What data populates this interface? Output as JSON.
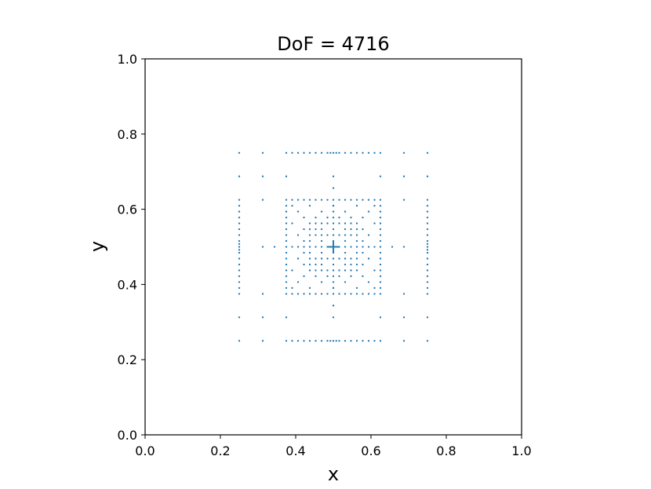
{
  "chart_data": {
    "type": "scatter",
    "title": "DoF = 4716",
    "xlabel": "x",
    "ylabel": "y",
    "xlim": [
      0.0,
      1.0
    ],
    "ylim": [
      0.0,
      1.0
    ],
    "xticks": [
      "0.0",
      "0.2",
      "0.4",
      "0.6",
      "0.8",
      "1.0"
    ],
    "yticks": [
      "0.0",
      "0.2",
      "0.4",
      "0.6",
      "0.8",
      "1.0"
    ],
    "grid": false,
    "legend": "none",
    "marker_color": "#1f77b4",
    "series": [
      {
        "points": [
          [
            0.25,
            0.25
          ],
          [
            0.3125,
            0.25
          ],
          [
            0.375,
            0.25
          ],
          [
            0.3906,
            0.25
          ],
          [
            0.4063,
            0.25
          ],
          [
            0.4219,
            0.25
          ],
          [
            0.4375,
            0.25
          ],
          [
            0.4531,
            0.25
          ],
          [
            0.4688,
            0.25
          ],
          [
            0.4844,
            0.25
          ],
          [
            0.4922,
            0.25
          ],
          [
            0.5,
            0.25
          ],
          [
            0.5078,
            0.25
          ],
          [
            0.5156,
            0.25
          ],
          [
            0.5313,
            0.25
          ],
          [
            0.5469,
            0.25
          ],
          [
            0.5625,
            0.25
          ],
          [
            0.5781,
            0.25
          ],
          [
            0.5938,
            0.25
          ],
          [
            0.6094,
            0.25
          ],
          [
            0.625,
            0.25
          ],
          [
            0.6875,
            0.25
          ],
          [
            0.75,
            0.25
          ],
          [
            0.25,
            0.75
          ],
          [
            0.3125,
            0.75
          ],
          [
            0.375,
            0.75
          ],
          [
            0.3906,
            0.75
          ],
          [
            0.4063,
            0.75
          ],
          [
            0.4219,
            0.75
          ],
          [
            0.4375,
            0.75
          ],
          [
            0.4531,
            0.75
          ],
          [
            0.4688,
            0.75
          ],
          [
            0.4844,
            0.75
          ],
          [
            0.4922,
            0.75
          ],
          [
            0.5,
            0.75
          ],
          [
            0.5078,
            0.75
          ],
          [
            0.5156,
            0.75
          ],
          [
            0.5313,
            0.75
          ],
          [
            0.5469,
            0.75
          ],
          [
            0.5625,
            0.75
          ],
          [
            0.5781,
            0.75
          ],
          [
            0.5938,
            0.75
          ],
          [
            0.6094,
            0.75
          ],
          [
            0.625,
            0.75
          ],
          [
            0.6875,
            0.75
          ],
          [
            0.75,
            0.75
          ],
          [
            0.25,
            0.3125
          ],
          [
            0.25,
            0.375
          ],
          [
            0.25,
            0.3906
          ],
          [
            0.25,
            0.4063
          ],
          [
            0.25,
            0.4219
          ],
          [
            0.25,
            0.4375
          ],
          [
            0.25,
            0.4531
          ],
          [
            0.25,
            0.4688
          ],
          [
            0.25,
            0.4844
          ],
          [
            0.25,
            0.4922
          ],
          [
            0.25,
            0.5
          ],
          [
            0.25,
            0.5078
          ],
          [
            0.25,
            0.5156
          ],
          [
            0.25,
            0.5313
          ],
          [
            0.25,
            0.5469
          ],
          [
            0.25,
            0.5625
          ],
          [
            0.25,
            0.5781
          ],
          [
            0.25,
            0.5938
          ],
          [
            0.25,
            0.6094
          ],
          [
            0.25,
            0.625
          ],
          [
            0.25,
            0.6875
          ],
          [
            0.75,
            0.3125
          ],
          [
            0.75,
            0.375
          ],
          [
            0.75,
            0.3906
          ],
          [
            0.75,
            0.4063
          ],
          [
            0.75,
            0.4219
          ],
          [
            0.75,
            0.4375
          ],
          [
            0.75,
            0.4531
          ],
          [
            0.75,
            0.4688
          ],
          [
            0.75,
            0.4844
          ],
          [
            0.75,
            0.4922
          ],
          [
            0.75,
            0.5
          ],
          [
            0.75,
            0.5078
          ],
          [
            0.75,
            0.5156
          ],
          [
            0.75,
            0.5313
          ],
          [
            0.75,
            0.5469
          ],
          [
            0.75,
            0.5625
          ],
          [
            0.75,
            0.5781
          ],
          [
            0.75,
            0.5938
          ],
          [
            0.75,
            0.6094
          ],
          [
            0.75,
            0.625
          ],
          [
            0.75,
            0.6875
          ],
          [
            0.3125,
            0.3125
          ],
          [
            0.375,
            0.3125
          ],
          [
            0.5,
            0.3125
          ],
          [
            0.625,
            0.3125
          ],
          [
            0.6875,
            0.3125
          ],
          [
            0.3125,
            0.6875
          ],
          [
            0.375,
            0.6875
          ],
          [
            0.5,
            0.6875
          ],
          [
            0.625,
            0.6875
          ],
          [
            0.6875,
            0.6875
          ],
          [
            0.3125,
            0.375
          ],
          [
            0.6875,
            0.375
          ],
          [
            0.3125,
            0.625
          ],
          [
            0.6875,
            0.625
          ],
          [
            0.3125,
            0.5
          ],
          [
            0.3438,
            0.5
          ],
          [
            0.6563,
            0.5
          ],
          [
            0.6875,
            0.5
          ],
          [
            0.5,
            0.3438
          ],
          [
            0.5,
            0.6563
          ],
          [
            0.375,
            0.375
          ],
          [
            0.3906,
            0.375
          ],
          [
            0.4063,
            0.375
          ],
          [
            0.4219,
            0.375
          ],
          [
            0.4375,
            0.375
          ],
          [
            0.4531,
            0.375
          ],
          [
            0.4688,
            0.375
          ],
          [
            0.4844,
            0.375
          ],
          [
            0.5,
            0.375
          ],
          [
            0.5156,
            0.375
          ],
          [
            0.5313,
            0.375
          ],
          [
            0.5469,
            0.375
          ],
          [
            0.5625,
            0.375
          ],
          [
            0.5781,
            0.375
          ],
          [
            0.5938,
            0.375
          ],
          [
            0.6094,
            0.375
          ],
          [
            0.625,
            0.375
          ],
          [
            0.375,
            0.625
          ],
          [
            0.3906,
            0.625
          ],
          [
            0.4063,
            0.625
          ],
          [
            0.4219,
            0.625
          ],
          [
            0.4375,
            0.625
          ],
          [
            0.4531,
            0.625
          ],
          [
            0.4688,
            0.625
          ],
          [
            0.4844,
            0.625
          ],
          [
            0.5,
            0.625
          ],
          [
            0.5156,
            0.625
          ],
          [
            0.5313,
            0.625
          ],
          [
            0.5469,
            0.625
          ],
          [
            0.5625,
            0.625
          ],
          [
            0.5781,
            0.625
          ],
          [
            0.5938,
            0.625
          ],
          [
            0.6094,
            0.625
          ],
          [
            0.625,
            0.625
          ],
          [
            0.375,
            0.3906
          ],
          [
            0.375,
            0.4063
          ],
          [
            0.375,
            0.4219
          ],
          [
            0.375,
            0.4375
          ],
          [
            0.375,
            0.4531
          ],
          [
            0.375,
            0.4688
          ],
          [
            0.375,
            0.4844
          ],
          [
            0.375,
            0.5
          ],
          [
            0.375,
            0.5156
          ],
          [
            0.375,
            0.5313
          ],
          [
            0.375,
            0.5469
          ],
          [
            0.375,
            0.5625
          ],
          [
            0.375,
            0.5781
          ],
          [
            0.375,
            0.5938
          ],
          [
            0.375,
            0.6094
          ],
          [
            0.625,
            0.3906
          ],
          [
            0.625,
            0.4063
          ],
          [
            0.625,
            0.4219
          ],
          [
            0.625,
            0.4375
          ],
          [
            0.625,
            0.4531
          ],
          [
            0.625,
            0.4688
          ],
          [
            0.625,
            0.4844
          ],
          [
            0.625,
            0.5
          ],
          [
            0.625,
            0.5156
          ],
          [
            0.625,
            0.5313
          ],
          [
            0.625,
            0.5469
          ],
          [
            0.625,
            0.5625
          ],
          [
            0.625,
            0.5781
          ],
          [
            0.625,
            0.5938
          ],
          [
            0.625,
            0.6094
          ],
          [
            0.3906,
            0.3906
          ],
          [
            0.4375,
            0.3906
          ],
          [
            0.5,
            0.3906
          ],
          [
            0.5625,
            0.3906
          ],
          [
            0.6094,
            0.3906
          ],
          [
            0.3906,
            0.6094
          ],
          [
            0.4375,
            0.6094
          ],
          [
            0.5,
            0.6094
          ],
          [
            0.5625,
            0.6094
          ],
          [
            0.6094,
            0.6094
          ],
          [
            0.3906,
            0.4375
          ],
          [
            0.3906,
            0.5625
          ],
          [
            0.6094,
            0.4375
          ],
          [
            0.6094,
            0.5625
          ],
          [
            0.4063,
            0.4063
          ],
          [
            0.4688,
            0.4063
          ],
          [
            0.5313,
            0.4063
          ],
          [
            0.5938,
            0.4063
          ],
          [
            0.4063,
            0.5938
          ],
          [
            0.4688,
            0.5938
          ],
          [
            0.5313,
            0.5938
          ],
          [
            0.5938,
            0.5938
          ],
          [
            0.4063,
            0.4688
          ],
          [
            0.4063,
            0.5313
          ],
          [
            0.5938,
            0.4688
          ],
          [
            0.5938,
            0.5313
          ],
          [
            0.4219,
            0.4219
          ],
          [
            0.4531,
            0.4219
          ],
          [
            0.4844,
            0.4219
          ],
          [
            0.5156,
            0.4219
          ],
          [
            0.5469,
            0.4219
          ],
          [
            0.5781,
            0.4219
          ],
          [
            0.4219,
            0.5781
          ],
          [
            0.4531,
            0.5781
          ],
          [
            0.4844,
            0.5781
          ],
          [
            0.5156,
            0.5781
          ],
          [
            0.5469,
            0.5781
          ],
          [
            0.5781,
            0.5781
          ],
          [
            0.4219,
            0.4531
          ],
          [
            0.4219,
            0.4844
          ],
          [
            0.4219,
            0.5156
          ],
          [
            0.4219,
            0.5469
          ],
          [
            0.5781,
            0.4531
          ],
          [
            0.5781,
            0.4844
          ],
          [
            0.5781,
            0.5156
          ],
          [
            0.5781,
            0.5469
          ],
          [
            0.4375,
            0.4375
          ],
          [
            0.4531,
            0.4375
          ],
          [
            0.4688,
            0.4375
          ],
          [
            0.4844,
            0.4375
          ],
          [
            0.5,
            0.4375
          ],
          [
            0.5156,
            0.4375
          ],
          [
            0.5313,
            0.4375
          ],
          [
            0.5469,
            0.4375
          ],
          [
            0.5625,
            0.4375
          ],
          [
            0.4375,
            0.5625
          ],
          [
            0.4531,
            0.5625
          ],
          [
            0.4688,
            0.5625
          ],
          [
            0.4844,
            0.5625
          ],
          [
            0.5,
            0.5625
          ],
          [
            0.5156,
            0.5625
          ],
          [
            0.5313,
            0.5625
          ],
          [
            0.5469,
            0.5625
          ],
          [
            0.5625,
            0.5625
          ],
          [
            0.4375,
            0.4531
          ],
          [
            0.4375,
            0.4688
          ],
          [
            0.4375,
            0.4844
          ],
          [
            0.4375,
            0.5
          ],
          [
            0.4375,
            0.5156
          ],
          [
            0.4375,
            0.5313
          ],
          [
            0.4375,
            0.5469
          ],
          [
            0.5625,
            0.4531
          ],
          [
            0.5625,
            0.4688
          ],
          [
            0.5625,
            0.4844
          ],
          [
            0.5625,
            0.5
          ],
          [
            0.5625,
            0.5156
          ],
          [
            0.5625,
            0.5313
          ],
          [
            0.5625,
            0.5469
          ],
          [
            0.4531,
            0.4531
          ],
          [
            0.4688,
            0.4531
          ],
          [
            0.5313,
            0.4531
          ],
          [
            0.5469,
            0.4531
          ],
          [
            0.4531,
            0.5469
          ],
          [
            0.4688,
            0.5469
          ],
          [
            0.5313,
            0.5469
          ],
          [
            0.5469,
            0.5469
          ],
          [
            0.4531,
            0.4688
          ],
          [
            0.4531,
            0.5313
          ],
          [
            0.5469,
            0.4688
          ],
          [
            0.5469,
            0.5313
          ],
          [
            0.4688,
            0.4688
          ],
          [
            0.4844,
            0.4688
          ],
          [
            0.5156,
            0.4688
          ],
          [
            0.5313,
            0.4688
          ],
          [
            0.4688,
            0.5313
          ],
          [
            0.4844,
            0.5313
          ],
          [
            0.5156,
            0.5313
          ],
          [
            0.5313,
            0.5313
          ],
          [
            0.4688,
            0.4844
          ],
          [
            0.4688,
            0.5156
          ],
          [
            0.5313,
            0.4844
          ],
          [
            0.5313,
            0.5156
          ],
          [
            0.3906,
            0.5
          ],
          [
            0.4063,
            0.5
          ],
          [
            0.4219,
            0.5
          ],
          [
            0.4531,
            0.5
          ],
          [
            0.4688,
            0.5
          ],
          [
            0.4844,
            0.5
          ],
          [
            0.4883,
            0.5
          ],
          [
            0.4922,
            0.5
          ],
          [
            0.4961,
            0.5
          ],
          [
            0.5,
            0.5
          ],
          [
            0.5039,
            0.5
          ],
          [
            0.5078,
            0.5
          ],
          [
            0.5117,
            0.5
          ],
          [
            0.5156,
            0.5
          ],
          [
            0.5313,
            0.5
          ],
          [
            0.5469,
            0.5
          ],
          [
            0.5781,
            0.5
          ],
          [
            0.5938,
            0.5
          ],
          [
            0.6094,
            0.5
          ],
          [
            0.5,
            0.3906
          ],
          [
            0.5,
            0.4063
          ],
          [
            0.5,
            0.4219
          ],
          [
            0.5,
            0.4531
          ],
          [
            0.5,
            0.4688
          ],
          [
            0.5,
            0.4844
          ],
          [
            0.5,
            0.4883
          ],
          [
            0.5,
            0.4922
          ],
          [
            0.5,
            0.4961
          ],
          [
            0.5,
            0.5039
          ],
          [
            0.5,
            0.5078
          ],
          [
            0.5,
            0.5117
          ],
          [
            0.5,
            0.5156
          ],
          [
            0.5,
            0.5313
          ],
          [
            0.5,
            0.5469
          ],
          [
            0.5,
            0.5781
          ],
          [
            0.5,
            0.5938
          ],
          [
            0.5,
            0.6094
          ]
        ]
      }
    ]
  }
}
